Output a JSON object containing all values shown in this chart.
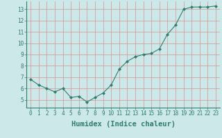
{
  "x": [
    0,
    1,
    2,
    3,
    4,
    5,
    6,
    7,
    8,
    9,
    10,
    11,
    12,
    13,
    14,
    15,
    16,
    17,
    18,
    19,
    20,
    21,
    22,
    23
  ],
  "y": [
    6.8,
    6.3,
    6.0,
    5.7,
    6.0,
    5.2,
    5.3,
    4.8,
    5.2,
    5.6,
    6.3,
    7.7,
    8.4,
    8.8,
    9.0,
    9.1,
    9.5,
    10.8,
    11.6,
    13.0,
    13.2,
    13.2,
    13.2,
    13.3
  ],
  "line_color": "#2e7d6e",
  "marker": "D",
  "marker_size": 2.0,
  "bg_color": "#cce8e8",
  "grid_color_major": "#d4a0a0",
  "grid_color_minor": "#d4a0a0",
  "xlabel": "Humidex (Indice chaleur)",
  "xlim": [
    -0.5,
    23.5
  ],
  "ylim": [
    4.3,
    13.7
  ],
  "yticks": [
    5,
    6,
    7,
    8,
    9,
    10,
    11,
    12,
    13
  ],
  "xticks": [
    0,
    1,
    2,
    3,
    4,
    5,
    6,
    7,
    8,
    9,
    10,
    11,
    12,
    13,
    14,
    15,
    16,
    17,
    18,
    19,
    20,
    21,
    22,
    23
  ],
  "tick_label_fontsize": 5.5,
  "xlabel_fontsize": 7.5,
  "axis_color": "#2e7d6e",
  "spine_color": "#2e7d6e"
}
